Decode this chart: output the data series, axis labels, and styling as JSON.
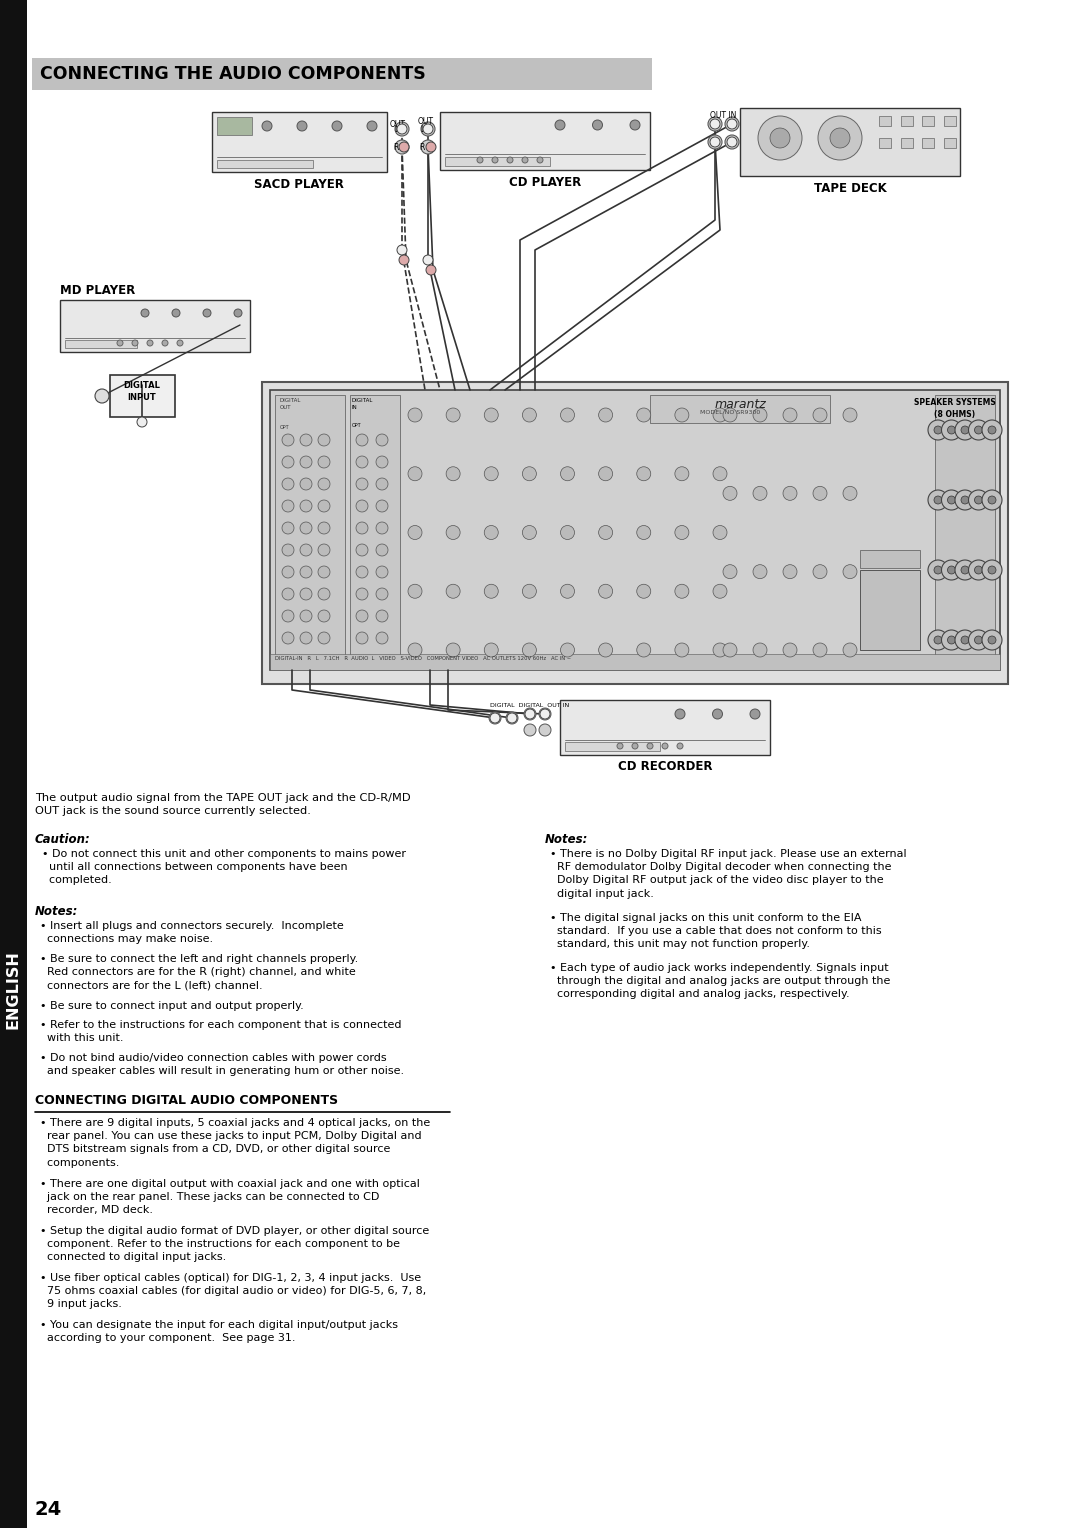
{
  "page_bg": "#ffffff",
  "title": "CONNECTING THE AUDIO COMPONENTS",
  "title_bg": "#c0c0c0",
  "title_color": "#000000",
  "sidebar_text": "ENGLISH",
  "sidebar_bg": "#111111",
  "sidebar_text_color": "#ffffff",
  "section2_title": "CONNECTING DIGITAL AUDIO COMPONENTS",
  "page_number": "24",
  "caution_title": "Caution:",
  "caution_text": "  • Do not connect this unit and other components to mains power\n    until all connections between components have been\n    completed.",
  "notes_title_left": "Notes:",
  "notes_left": [
    "• Insert all plugs and connectors securely.  Incomplete\n  connections may make noise.",
    "• Be sure to connect the left and right channels properly.\n  Red connectors are for the R (right) channel, and white\n  connectors are for the L (left) channel.",
    "• Be sure to connect input and output properly.",
    "• Refer to the instructions for each component that is connected\n  with this unit.",
    "• Do not bind audio/video connection cables with power cords\n  and speaker cables will result in generating hum or other noise."
  ],
  "notes_title_right": "Notes:",
  "notes_right": [
    "• There is no Dolby Digital RF input jack. Please use an external\n  RF demodulator Dolby Digital decoder when connecting the\n  Dolby Digital RF output jack of the video disc player to the\n  digital input jack.",
    "• The digital signal jacks on this unit conform to the EIA\n  standard.  If you use a cable that does not conform to this\n  standard, this unit may not function properly.",
    "• Each type of audio jack works independently. Signals input\n  through the digital and analog jacks are output through the\n  corresponding digital and analog jacks, respectively."
  ],
  "intro_text": "The output audio signal from the TAPE OUT jack and the CD-R/MD\nOUT jack is the sound source currently selected.",
  "section2_bullets": [
    "• There are 9 digital inputs, 5 coaxial jacks and 4 optical jacks, on the\n  rear panel. You can use these jacks to input PCM, Dolby Digital and\n  DTS bitstream signals from a CD, DVD, or other digital source\n  components.",
    "• There are one digital output with coaxial jack and one with optical\n  jack on the rear panel. These jacks can be connected to CD\n  recorder, MD deck.",
    "• Setup the digital audio format of DVD player, or other digital source\n  component. Refer to the instructions for each component to be\n  connected to digital input jacks.",
    "• Use fiber optical cables (optical) for DIG-1, 2, 3, 4 input jacks.  Use\n  75 ohms coaxial cables (for digital audio or video) for DIG-5, 6, 7, 8,\n  9 input jacks.",
    "• You can designate the input for each digital input/output jacks\n  according to your component.  See page 31."
  ]
}
